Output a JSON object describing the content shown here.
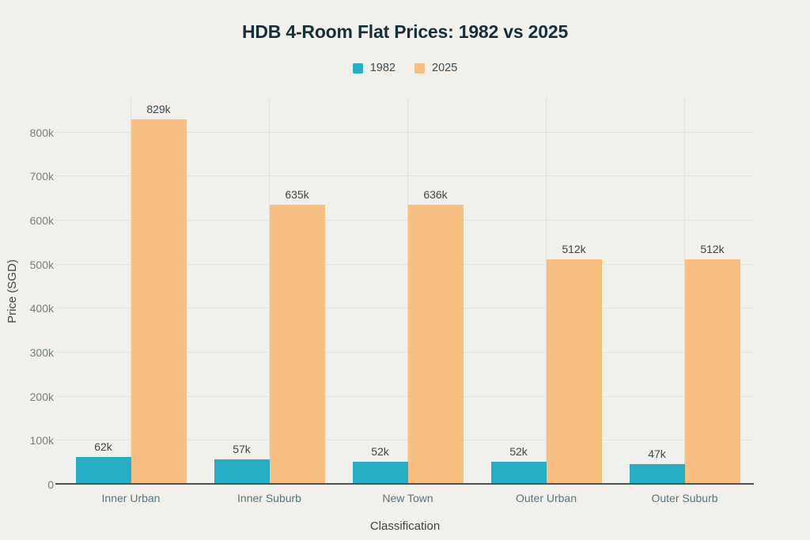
{
  "page": {
    "background_color": "#f1f0ea",
    "grid_color": "#e2e2da",
    "axis_color": "#4a5456"
  },
  "chart_data": {
    "type": "bar",
    "title": "HDB 4-Room Flat Prices: 1982 vs 2025",
    "xlabel": "Classification",
    "ylabel": "Price (SGD)",
    "categories": [
      "Inner Urban",
      "Inner Suburb",
      "New Town",
      "Outer Urban",
      "Outer Suburb"
    ],
    "series": [
      {
        "name": "1982",
        "color": "#26afc4",
        "values": [
          62000,
          57000,
          52000,
          52000,
          47000
        ],
        "labels": [
          "62k",
          "57k",
          "52k",
          "52k",
          "47k"
        ]
      },
      {
        "name": "2025",
        "color": "#f8bf83",
        "values": [
          829000,
          635000,
          636000,
          512000,
          512000
        ],
        "labels": [
          "829k",
          "635k",
          "636k",
          "512k",
          "512k"
        ]
      }
    ],
    "ylim": [
      0,
      880000
    ],
    "yticks": [
      {
        "value": 0,
        "label": "0"
      },
      {
        "value": 100000,
        "label": "100k"
      },
      {
        "value": 200000,
        "label": "200k"
      },
      {
        "value": 300000,
        "label": "300k"
      },
      {
        "value": 400000,
        "label": "400k"
      },
      {
        "value": 500000,
        "label": "500k"
      },
      {
        "value": 600000,
        "label": "600k"
      },
      {
        "value": 700000,
        "label": "700k"
      },
      {
        "value": 800000,
        "label": "800k"
      }
    ],
    "grid": "horizontal lines at 100k intervals, vertical lines at category centers",
    "legend_position": "top-center"
  }
}
